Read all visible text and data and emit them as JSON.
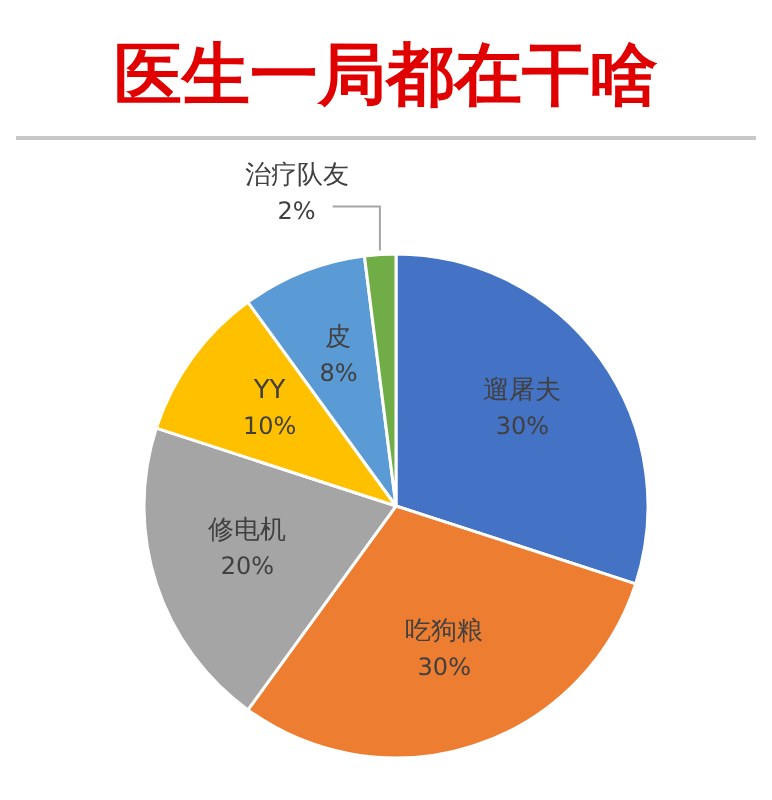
{
  "chart_data": {
    "type": "pie",
    "title": "医生一局都在干啥",
    "categories": [
      "遛屠夫",
      "吃狗粮",
      "修电机",
      "YY",
      "皮",
      "治疗队友"
    ],
    "values": [
      30,
      30,
      20,
      10,
      8,
      2
    ],
    "value_labels": [
      "30%",
      "30%",
      "20%",
      "10%",
      "8%",
      "2%"
    ],
    "colors": [
      "#4472c4",
      "#ed7d31",
      "#a5a5a5",
      "#ffc000",
      "#5b9bd5",
      "#70ad47"
    ],
    "legend": false
  }
}
